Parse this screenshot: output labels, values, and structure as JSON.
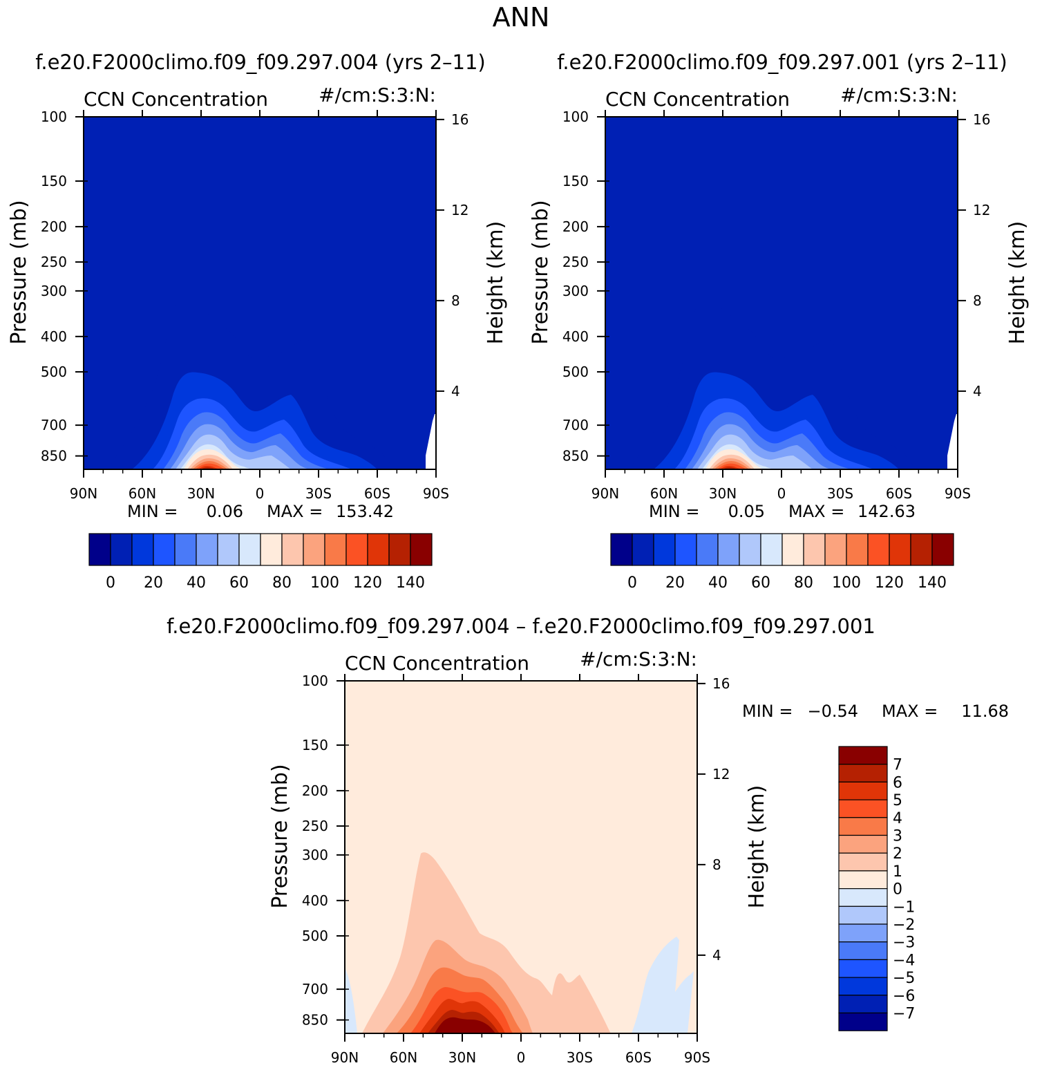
{
  "page": {
    "title": "ANN"
  },
  "colors": {
    "abs_levels": [
      "#00008a",
      "#0020b4",
      "#0038dc",
      "#1e55ff",
      "#4a7af8",
      "#7ea2fa",
      "#b0c8fb",
      "#d8e8fc",
      "#ffebdc",
      "#fdc6ae",
      "#fba37e",
      "#f97a48",
      "#fb5224",
      "#e03508",
      "#b52102",
      "#890000"
    ],
    "diff_levels": [
      "#890000",
      "#b52102",
      "#e03508",
      "#fb5224",
      "#f97a48",
      "#fba37e",
      "#fdc6ae",
      "#ffebdc",
      "#d8e8fc",
      "#b0c8fb",
      "#7ea2fa",
      "#4a7af8",
      "#1e55ff",
      "#0038dc",
      "#0020b4",
      "#00008a"
    ]
  },
  "chart_data": [
    {
      "type": "heatmap",
      "title": "f.e20.F2000climo.f09_f09.297.004 (yrs 2–11)",
      "left_title": "CCN Concentration",
      "right_title": "#/cm:S:3:N:",
      "ylabel": "Pressure (mb)",
      "y2label": "Height (km)",
      "x_ticks": [
        "90N",
        "60N",
        "30N",
        "0",
        "30S",
        "60S",
        "90S"
      ],
      "x_values": [
        90,
        60,
        30,
        0,
        -30,
        -60,
        -90
      ],
      "y_ticks": [
        "100",
        "150",
        "200",
        "250",
        "300",
        "400",
        "500",
        "700",
        "850"
      ],
      "y_values": [
        100,
        150,
        200,
        250,
        300,
        400,
        500,
        700,
        850
      ],
      "y2_ticks": [
        "16",
        "12",
        "8",
        "4"
      ],
      "y2_values": [
        16,
        12,
        8,
        4
      ],
      "ylim": [
        100,
        925
      ],
      "min_text": "MIN =",
      "min_value": "0.06",
      "max_text": "MAX =",
      "max_value": "153.42",
      "colorbar_labels": [
        "0",
        "20",
        "40",
        "60",
        "80",
        "100",
        "120",
        "140"
      ],
      "peak": {
        "lat": 30,
        "value": 153.42
      }
    },
    {
      "type": "heatmap",
      "title": "f.e20.F2000climo.f09_f09.297.001 (yrs 2–11)",
      "left_title": "CCN Concentration",
      "right_title": "#/cm:S:3:N:",
      "ylabel": "Pressure (mb)",
      "y2label": "Height (km)",
      "x_ticks": [
        "90N",
        "60N",
        "30N",
        "0",
        "30S",
        "60S",
        "90S"
      ],
      "x_values": [
        90,
        60,
        30,
        0,
        -30,
        -60,
        -90
      ],
      "y_ticks": [
        "100",
        "150",
        "200",
        "250",
        "300",
        "400",
        "500",
        "700",
        "850"
      ],
      "y_values": [
        100,
        150,
        200,
        250,
        300,
        400,
        500,
        700,
        850
      ],
      "y2_ticks": [
        "16",
        "12",
        "8",
        "4"
      ],
      "y2_values": [
        16,
        12,
        8,
        4
      ],
      "ylim": [
        100,
        925
      ],
      "min_text": "MIN =",
      "min_value": "0.05",
      "max_text": "MAX =",
      "max_value": "142.63",
      "colorbar_labels": [
        "0",
        "20",
        "40",
        "60",
        "80",
        "100",
        "120",
        "140"
      ],
      "peak": {
        "lat": 30,
        "value": 142.63
      }
    },
    {
      "type": "heatmap",
      "title": "f.e20.F2000climo.f09_f09.297.004 – f.e20.F2000climo.f09_f09.297.001",
      "left_title": "CCN Concentration",
      "right_title": "#/cm:S:3:N:",
      "ylabel": "Pressure (mb)",
      "y2label": "Height (km)",
      "x_ticks": [
        "90N",
        "60N",
        "30N",
        "0",
        "30S",
        "60S",
        "90S"
      ],
      "x_values": [
        90,
        60,
        30,
        0,
        -30,
        -60,
        -90
      ],
      "y_ticks": [
        "100",
        "150",
        "200",
        "250",
        "300",
        "400",
        "500",
        "700",
        "850"
      ],
      "y_values": [
        100,
        150,
        200,
        250,
        300,
        400,
        500,
        700,
        850
      ],
      "y2_ticks": [
        "16",
        "12",
        "8",
        "4"
      ],
      "y2_values": [
        16,
        12,
        8,
        4
      ],
      "ylim": [
        100,
        925
      ],
      "min_text": "MIN =",
      "min_value": "−0.54",
      "max_text": "MAX =",
      "max_value": "11.68",
      "colorbar_labels": [
        "7",
        "6",
        "5",
        "4",
        "3",
        "2",
        "1",
        "0",
        "−1",
        "−2",
        "−3",
        "−4",
        "−5",
        "−6",
        "−7"
      ],
      "peak": {
        "lat": 30,
        "value": 11.68
      }
    }
  ]
}
